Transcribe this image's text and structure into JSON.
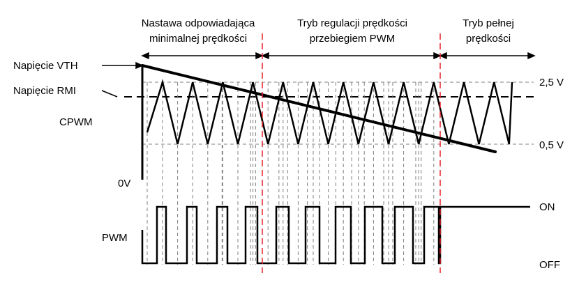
{
  "sections": [
    {
      "line1": "Nastawa odpowiadająca",
      "line2": "minimalnej prędkości"
    },
    {
      "line1": "Tryb regulacji prędkości",
      "line2": "przebiegiem PWM"
    },
    {
      "line1": "Tryb pełnej",
      "line2": "prędkości"
    }
  ],
  "labels": {
    "vth": "Napięcie VTH",
    "rmi": "Napięcie RMI",
    "cpwm": "CPWM",
    "zero": "0V",
    "pwm": "PWM",
    "v_high": "2,5 V",
    "v_low": "0,5 V",
    "on": "ON",
    "off": "OFF"
  },
  "colors": {
    "line": "#000000",
    "mode_divider": "#e8202a",
    "guide": "#808080"
  }
}
